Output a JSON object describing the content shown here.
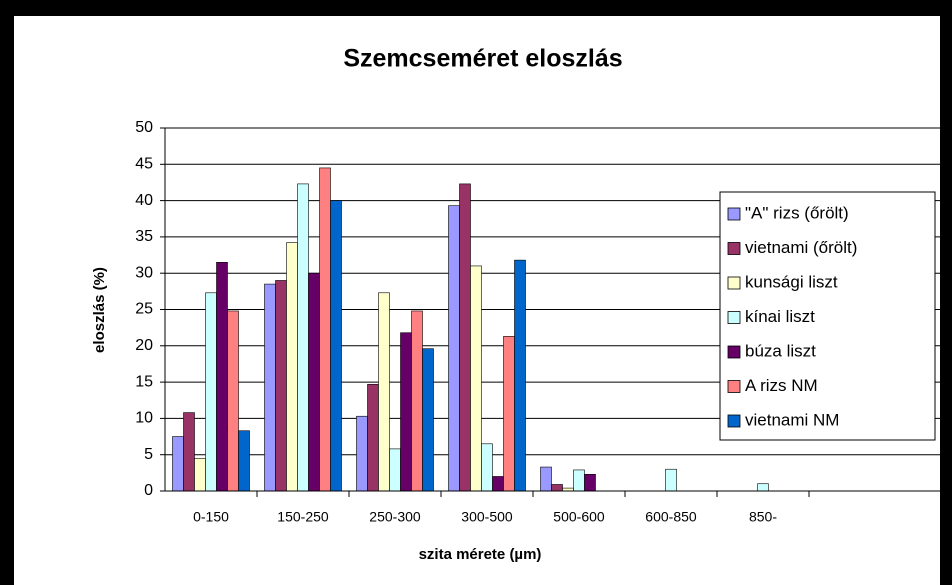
{
  "chart_data": {
    "type": "bar",
    "title": "Szemcseméret eloszlás",
    "x_label": "szita mérete (µm)",
    "y_label": "eloszlás (%)",
    "categories": [
      "0-150",
      "150-250",
      "250-300",
      "300-500",
      "500-600",
      "600-850",
      "850-"
    ],
    "series": [
      {
        "name": "\"A\" rizs (őrölt)",
        "color": "#9999ff",
        "values": [
          7.5,
          28.5,
          10.3,
          39.3,
          3.3,
          0,
          0
        ]
      },
      {
        "name": "vietnami (őrölt)",
        "color": "#993366",
        "values": [
          10.8,
          29,
          14.7,
          42.3,
          0.9,
          0,
          0
        ]
      },
      {
        "name": "kunsági liszt",
        "color": "#ffffcc",
        "values": [
          4.5,
          34.2,
          27.3,
          31,
          0.4,
          0,
          0
        ]
      },
      {
        "name": "kínai liszt",
        "color": "#ccffff",
        "values": [
          27.3,
          42.3,
          5.8,
          6.5,
          2.9,
          3,
          1
        ]
      },
      {
        "name": "búza liszt",
        "color": "#660066",
        "values": [
          31.5,
          30,
          21.8,
          2,
          2.3,
          0,
          0
        ]
      },
      {
        "name": "A rizs NM",
        "color": "#ff8080",
        "values": [
          24.8,
          44.5,
          24.8,
          21.3,
          0,
          0,
          0
        ]
      },
      {
        "name": "vietnami NM",
        "color": "#0066cc",
        "values": [
          8.3,
          40,
          19.6,
          31.8,
          0,
          0,
          0
        ]
      }
    ],
    "ylim": [
      0,
      50
    ],
    "yticks": [
      0,
      5,
      10,
      15,
      20,
      25,
      30,
      35,
      40,
      45,
      50
    ],
    "grid": true,
    "legend": "right"
  }
}
